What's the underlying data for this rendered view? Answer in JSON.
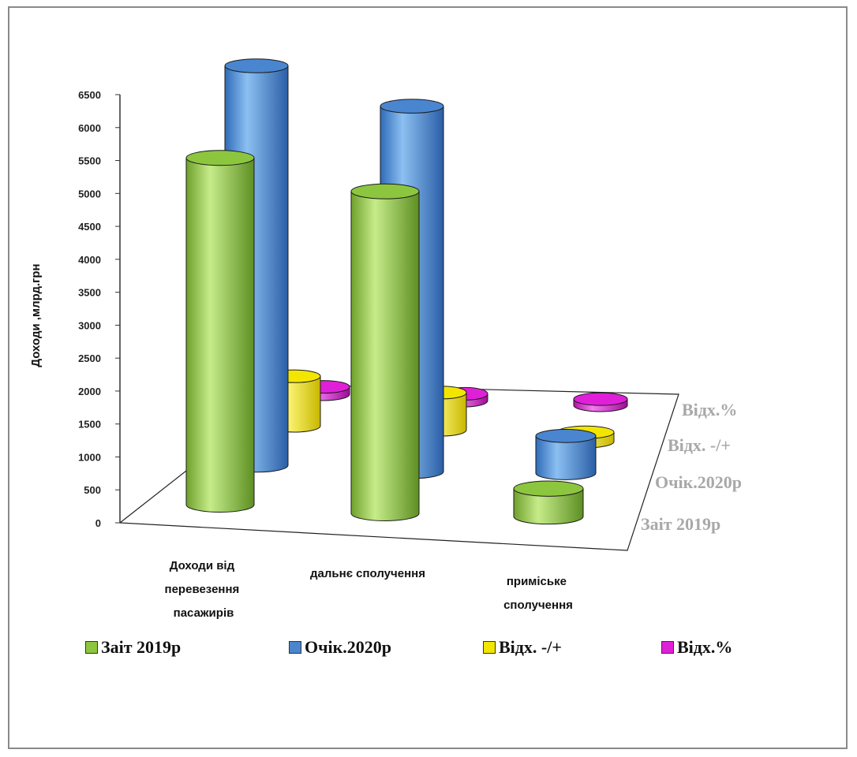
{
  "colors": {
    "Заіт 2019р": "#8cc63f",
    "Очік.2020р": "#4a86d0",
    "Відх. -/+": "#f2e600",
    "Відх.%": "#e020d8"
  },
  "chart_data": {
    "type": "bar",
    "ylabel": "Доходи ,млрд.грн",
    "ylim": [
      0,
      6500
    ],
    "yticks": [
      "0",
      "500",
      "1000",
      "1500",
      "2000",
      "2500",
      "3000",
      "3500",
      "4000",
      "4500",
      "5000",
      "5500",
      "6000",
      "6500"
    ],
    "categories": [
      "Доходи від перевезення пасажирів",
      "дальнє сполучення",
      "приміське сполучення"
    ],
    "series": [
      {
        "name": "Заіт 2019р",
        "values": [
          5600,
          5200,
          450
        ]
      },
      {
        "name": "Очік.2020р",
        "values": [
          6450,
          5900,
          600
        ]
      },
      {
        "name": "Відх. -/+",
        "values": [
          800,
          600,
          150
        ]
      },
      {
        "name": "Відх.%",
        "values": [
          120,
          110,
          100
        ]
      }
    ]
  }
}
